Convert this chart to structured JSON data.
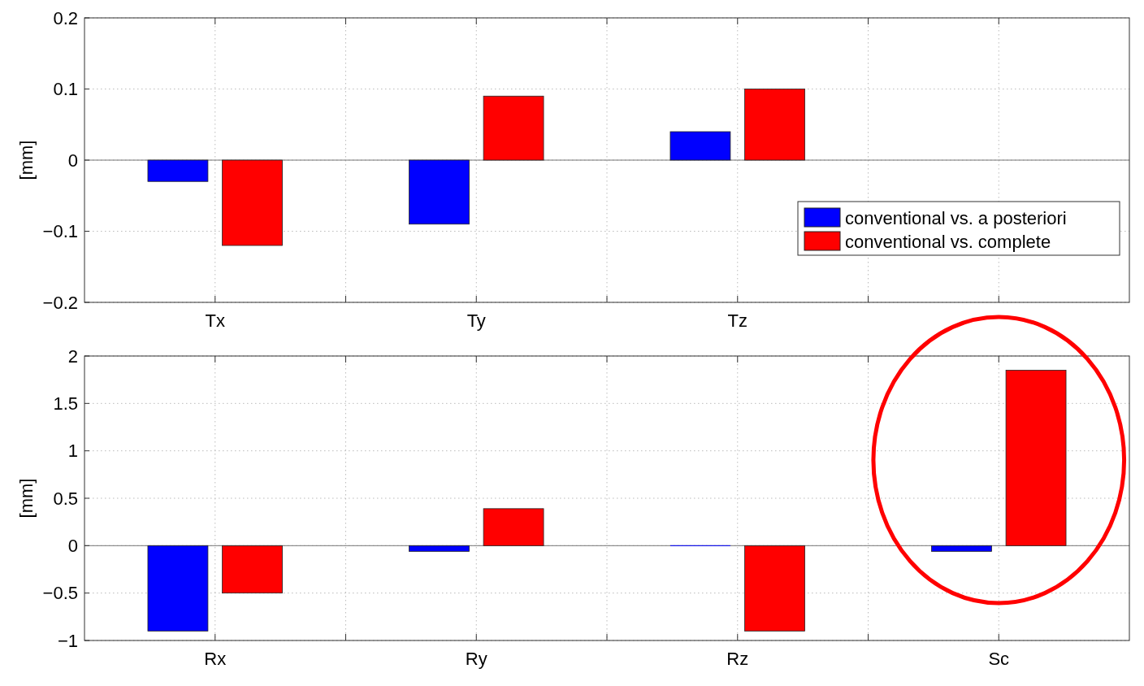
{
  "chart_data": [
    {
      "type": "bar",
      "categories": [
        "Tx",
        "Ty",
        "Tz",
        null
      ],
      "ylabel": "[mm]",
      "ylim": [
        -0.2,
        0.2
      ],
      "yticks": [
        -0.2,
        -0.1,
        0,
        0.1,
        0.2
      ],
      "grid": true,
      "legend": "right",
      "series": [
        {
          "name": "conventional vs. a posteriori",
          "color": "#0000ff",
          "values": [
            -0.03,
            -0.09,
            0.04,
            null
          ]
        },
        {
          "name": "conventional vs. complete",
          "color": "#ff0000",
          "values": [
            -0.12,
            0.09,
            0.1,
            null
          ]
        }
      ]
    },
    {
      "type": "bar",
      "categories": [
        "Rx",
        "Ry",
        "Rz",
        "Sc"
      ],
      "ylabel": "[mm]",
      "ylim": [
        -1,
        2
      ],
      "yticks": [
        -1,
        -0.5,
        0,
        0.5,
        1,
        1.5,
        2
      ],
      "grid": true,
      "series": [
        {
          "color": "#0000ff",
          "values": [
            -0.9,
            -0.06,
            0,
            -0.06
          ]
        },
        {
          "color": "#ff0000",
          "values": [
            -0.5,
            0.39,
            -0.9,
            1.85
          ]
        }
      ]
    }
  ]
}
